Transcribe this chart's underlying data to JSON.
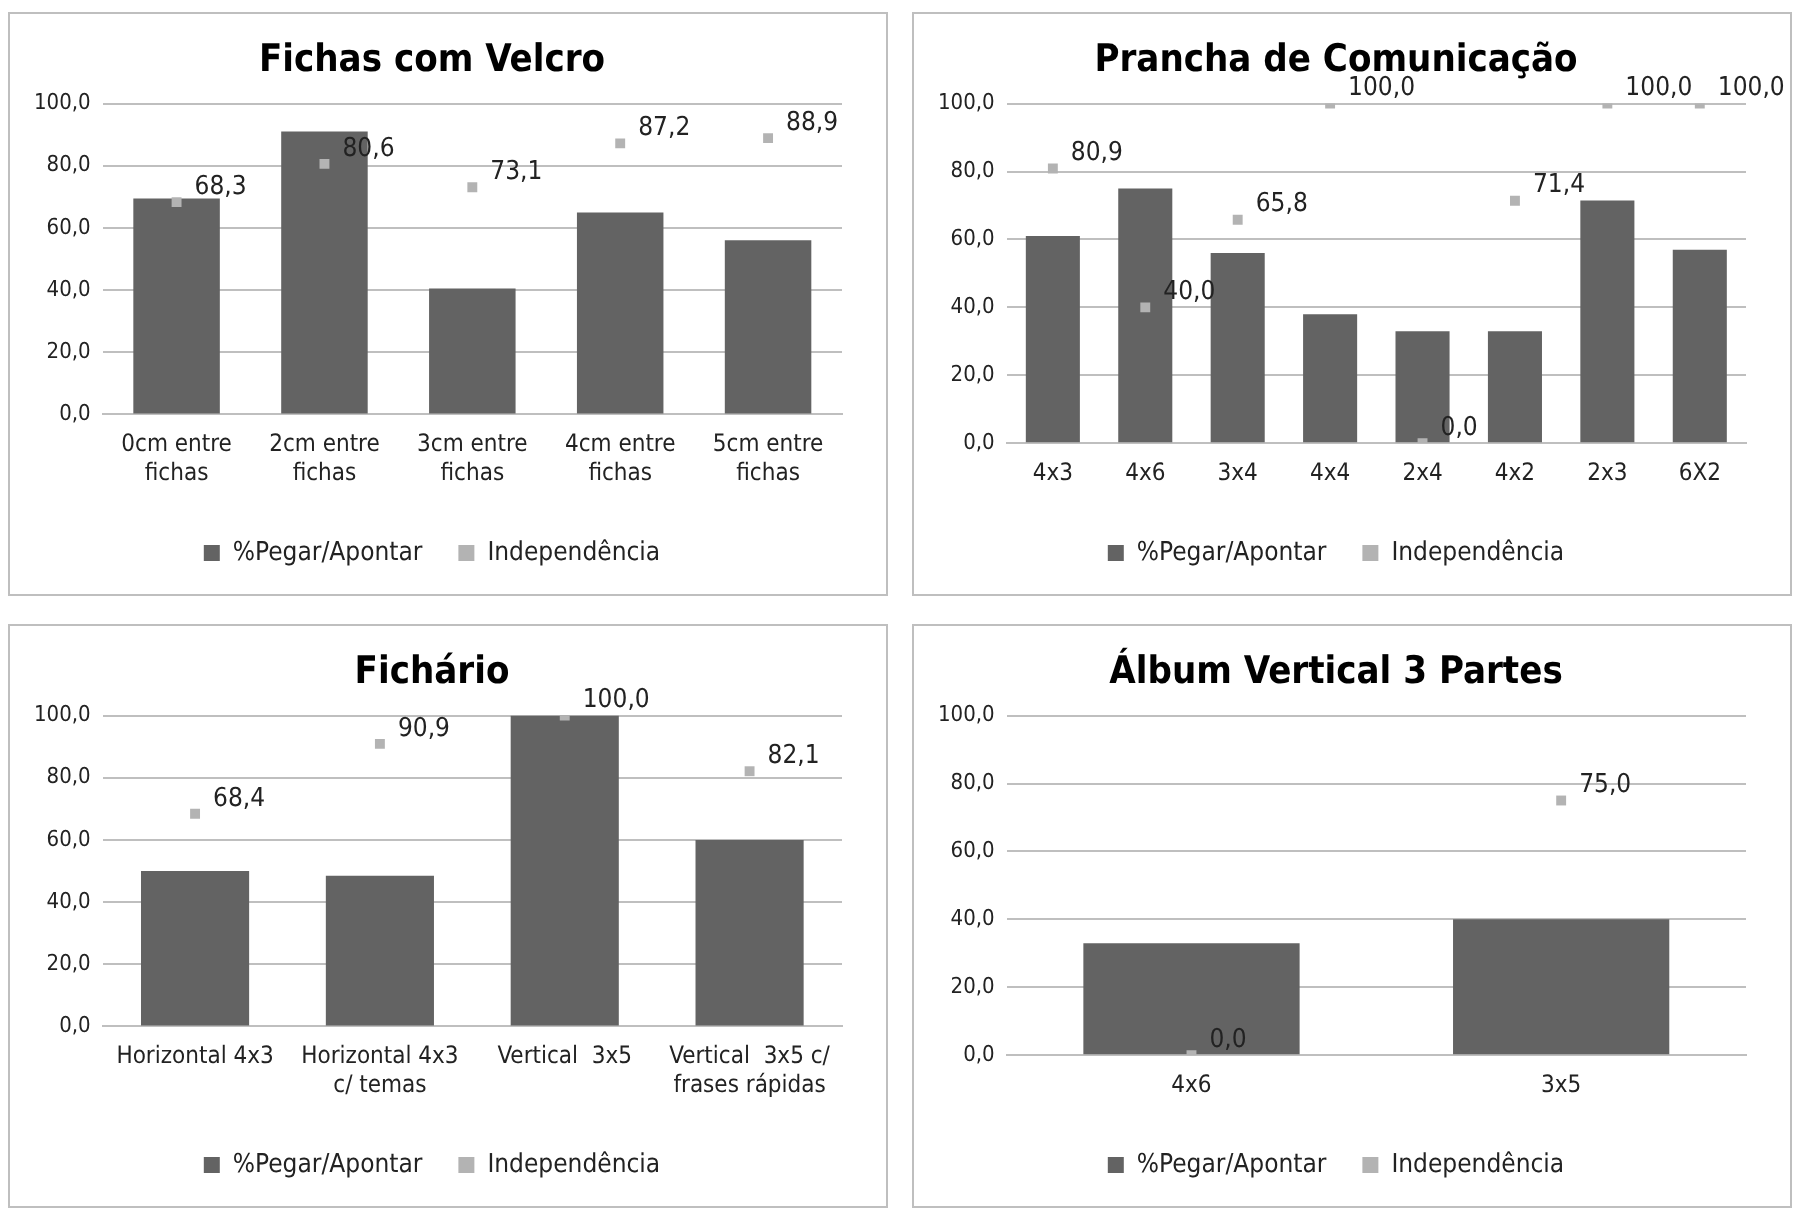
{
  "chart_data": [
    {
      "type": "bar",
      "title": "Fichas com Velcro",
      "categories": [
        "0cm entre fichas",
        "2cm entre fichas",
        "3cm entre fichas",
        "4cm entre fichas",
        "5cm entre fichas"
      ],
      "ylim": [
        0,
        100
      ],
      "yticks": [
        {
          "value": 0,
          "label": "0,0"
        },
        {
          "value": 20,
          "label": "20,0"
        },
        {
          "value": 40,
          "label": "40,0"
        },
        {
          "value": 60,
          "label": "60,0"
        },
        {
          "value": 80,
          "label": "80,0"
        },
        {
          "value": 100,
          "label": "100,0"
        }
      ],
      "grid": "y",
      "legend": "bottom",
      "series": [
        {
          "name": "%Pegar/Apontar",
          "color": "#636363",
          "values": [
            69.5,
            91,
            40.5,
            65,
            56
          ]
        },
        {
          "name": "Independência",
          "type": "scatter",
          "marker": "square",
          "color": "#b3b3b3",
          "x": [
            "0cm entre fichas",
            "2cm entre fichas",
            "3cm entre fichas",
            "4cm entre fichas",
            "5cm entre fichas"
          ],
          "values": [
            68.3,
            80.6,
            73.1,
            87.2,
            88.9
          ],
          "value_labels": [
            "68,3",
            "80,6",
            "73,1",
            "87,2",
            "88,9"
          ]
        }
      ]
    },
    {
      "type": "bar",
      "title": "Prancha de Comunicação",
      "categories": [
        "4x3",
        "4x6",
        "3x4",
        "4x4",
        "2x4",
        "4x2",
        "2x3",
        "6X2"
      ],
      "ylim": [
        0,
        100
      ],
      "yticks": [
        {
          "value": 0,
          "label": "0,0"
        },
        {
          "value": 20,
          "label": "20,0"
        },
        {
          "value": 40,
          "label": "40,0"
        },
        {
          "value": 60,
          "label": "60,0"
        },
        {
          "value": 80,
          "label": "80,0"
        },
        {
          "value": 100,
          "label": "100,0"
        }
      ],
      "grid": "y",
      "legend": "bottom",
      "series": [
        {
          "name": "%Pegar/Apontar",
          "color": "#636363",
          "values": [
            61,
            75,
            56,
            38,
            33,
            33,
            71.5,
            57
          ]
        },
        {
          "name": "Independência",
          "type": "scatter",
          "marker": "square",
          "color": "#b3b3b3",
          "x": [
            "4x3",
            "4x6",
            "3x4",
            "4x4",
            "2x4",
            "4x2",
            "2x3",
            "6X2"
          ],
          "values": [
            80.9,
            40,
            65.8,
            100,
            0,
            71.4,
            100,
            100
          ],
          "value_labels": [
            "80,9",
            "40,0",
            "65,8",
            "100,0",
            "0,0",
            "71,4",
            "100,0",
            "100,0"
          ]
        }
      ]
    },
    {
      "type": "bar",
      "title": "Fichário",
      "categories": [
        "Horizontal 4x3",
        "Horizontal 4x3 c/ temas",
        "Vertical  3x5",
        "Vertical  3x5 c/ frases rápidas"
      ],
      "ylim": [
        0,
        100
      ],
      "yticks": [
        {
          "value": 0,
          "label": "0,0"
        },
        {
          "value": 20,
          "label": "20,0"
        },
        {
          "value": 40,
          "label": "40,0"
        },
        {
          "value": 60,
          "label": "60,0"
        },
        {
          "value": 80,
          "label": "80,0"
        },
        {
          "value": 100,
          "label": "100,0"
        }
      ],
      "grid": "y",
      "legend": "bottom",
      "series": [
        {
          "name": "%Pegar/Apontar",
          "color": "#636363",
          "values": [
            50,
            48.5,
            100,
            60
          ]
        },
        {
          "name": "Independência",
          "type": "scatter",
          "marker": "square",
          "color": "#b3b3b3",
          "x": [
            "Horizontal 4x3",
            "Horizontal 4x3 c/ temas",
            "Vertical  3x5",
            "Vertical  3x5 c/ frases rápidas"
          ],
          "values": [
            68.4,
            90.9,
            100,
            82.1
          ],
          "value_labels": [
            "68,4",
            "90,9",
            "100,0",
            "82,1"
          ]
        }
      ]
    },
    {
      "type": "bar",
      "title": "Álbum Vertical 3 Partes",
      "categories": [
        "4x6",
        "3x5"
      ],
      "ylim": [
        0,
        100
      ],
      "yticks": [
        {
          "value": 0,
          "label": "0,0"
        },
        {
          "value": 20,
          "label": "20,0"
        },
        {
          "value": 40,
          "label": "40,0"
        },
        {
          "value": 60,
          "label": "60,0"
        },
        {
          "value": 80,
          "label": "80,0"
        },
        {
          "value": 100,
          "label": "100,0"
        }
      ],
      "grid": "y",
      "legend": "bottom",
      "series": [
        {
          "name": "%Pegar/Apontar",
          "color": "#636363",
          "values": [
            33,
            40
          ]
        },
        {
          "name": "Independência",
          "type": "scatter",
          "marker": "square",
          "color": "#b3b3b3",
          "x": [
            "4x6",
            "3x5"
          ],
          "values": [
            0,
            75
          ],
          "value_labels": [
            "0,0",
            "75,0"
          ]
        }
      ]
    }
  ]
}
